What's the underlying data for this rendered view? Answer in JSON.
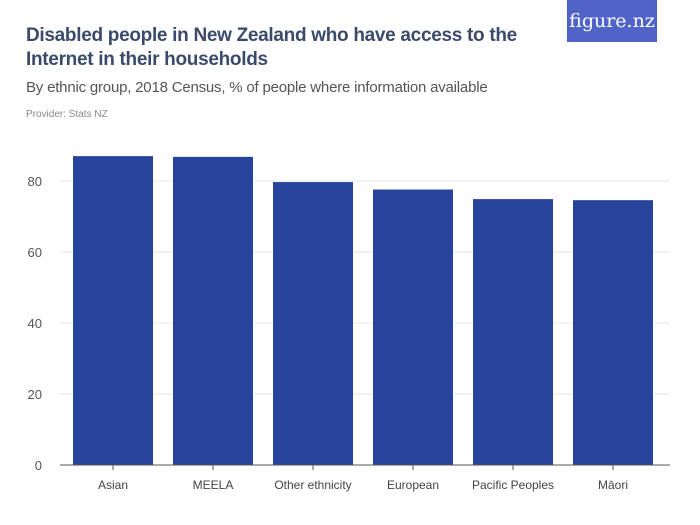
{
  "title": "Disabled people in New Zealand who have access to the Internet in their households",
  "subtitle": "By ethnic group, 2018 Census, % of people where information available",
  "provider": "Provider: Stats NZ",
  "logo": "figure.nz",
  "chart_data": {
    "type": "bar",
    "categories": [
      "Asian",
      "MEELA",
      "Other ethnicity",
      "European",
      "Pacific Peoples",
      "Māori"
    ],
    "values": [
      87.0,
      86.8,
      79.7,
      77.6,
      74.9,
      74.6
    ],
    "ylim": [
      0,
      90
    ],
    "yticks": [
      0,
      20,
      40,
      60,
      80
    ],
    "grid": true,
    "bar_color": "#27439b"
  }
}
